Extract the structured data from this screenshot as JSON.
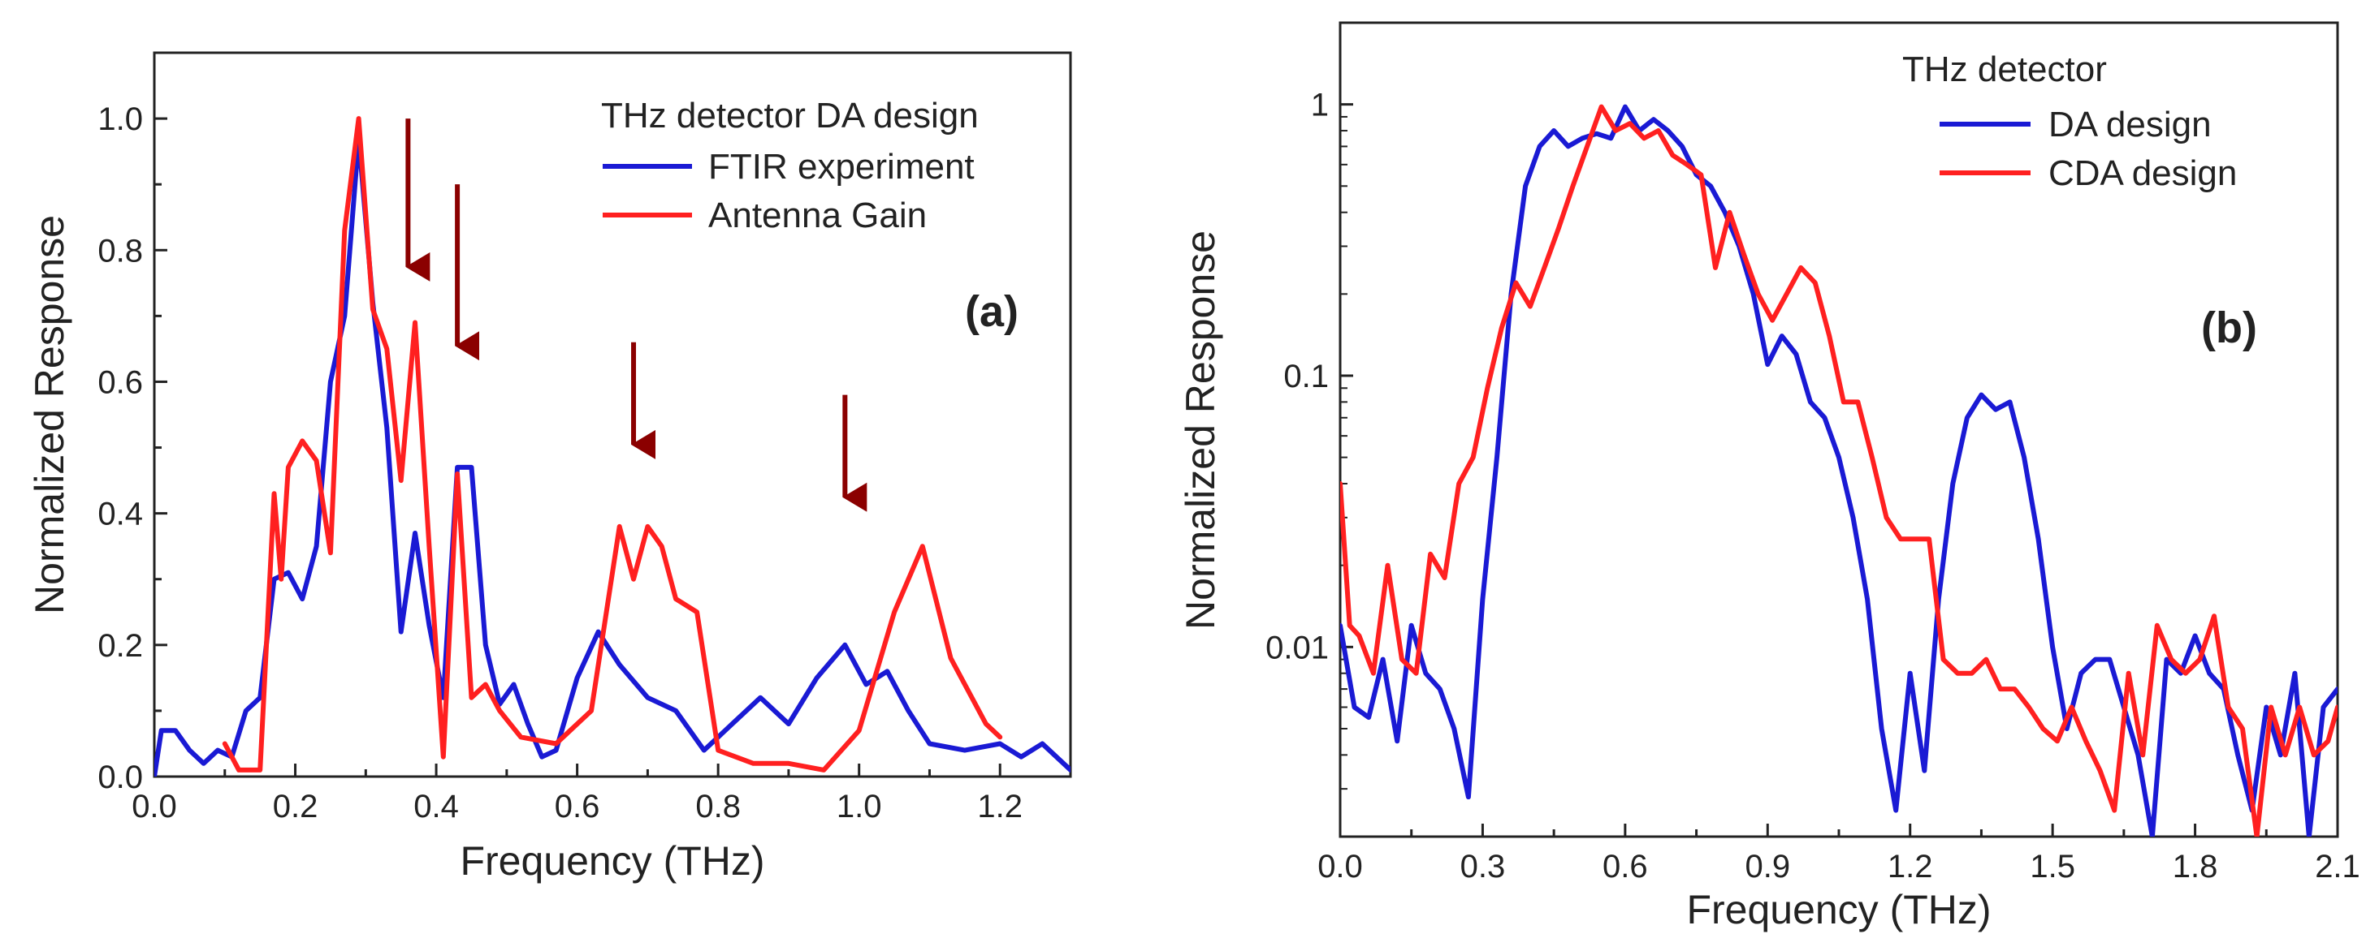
{
  "chart_data": [
    {
      "type": "line",
      "panel_label": "(a)",
      "xlabel": "Frequency (THz)",
      "ylabel": "Normalized Response",
      "xlim": [
        0.0,
        1.3
      ],
      "ylim": [
        0.0,
        1.1
      ],
      "yscale": "linear",
      "x_ticks": [
        0.0,
        0.2,
        0.4,
        0.6,
        0.8,
        1.0,
        1.2
      ],
      "x_tick_labels": [
        "0.0",
        "0.2",
        "0.4",
        "0.6",
        "0.8",
        "1.0",
        "1.2"
      ],
      "y_ticks": [
        0.0,
        0.2,
        0.4,
        0.6,
        0.8,
        1.0
      ],
      "y_tick_labels": [
        "0.0",
        "0.2",
        "0.4",
        "0.6",
        "0.8",
        "1.0"
      ],
      "legend_title": "THz detector DA design",
      "legend_position": "top-right",
      "series": [
        {
          "name": "FTIR experiment",
          "color": "#1a1ad4",
          "points": [
            [
              0.0,
              0.0
            ],
            [
              0.01,
              0.07
            ],
            [
              0.03,
              0.07
            ],
            [
              0.05,
              0.04
            ],
            [
              0.07,
              0.02
            ],
            [
              0.09,
              0.04
            ],
            [
              0.11,
              0.03
            ],
            [
              0.13,
              0.1
            ],
            [
              0.15,
              0.12
            ],
            [
              0.17,
              0.3
            ],
            [
              0.19,
              0.31
            ],
            [
              0.21,
              0.27
            ],
            [
              0.23,
              0.35
            ],
            [
              0.25,
              0.6
            ],
            [
              0.27,
              0.7
            ],
            [
              0.29,
              0.97
            ],
            [
              0.31,
              0.72
            ],
            [
              0.33,
              0.53
            ],
            [
              0.35,
              0.22
            ],
            [
              0.37,
              0.37
            ],
            [
              0.39,
              0.23
            ],
            [
              0.41,
              0.12
            ],
            [
              0.43,
              0.47
            ],
            [
              0.45,
              0.47
            ],
            [
              0.47,
              0.2
            ],
            [
              0.49,
              0.11
            ],
            [
              0.51,
              0.14
            ],
            [
              0.53,
              0.08
            ],
            [
              0.55,
              0.03
            ],
            [
              0.57,
              0.04
            ],
            [
              0.6,
              0.15
            ],
            [
              0.63,
              0.22
            ],
            [
              0.66,
              0.17
            ],
            [
              0.7,
              0.12
            ],
            [
              0.74,
              0.1
            ],
            [
              0.78,
              0.04
            ],
            [
              0.82,
              0.08
            ],
            [
              0.86,
              0.12
            ],
            [
              0.9,
              0.08
            ],
            [
              0.94,
              0.15
            ],
            [
              0.98,
              0.2
            ],
            [
              1.01,
              0.14
            ],
            [
              1.04,
              0.16
            ],
            [
              1.07,
              0.1
            ],
            [
              1.1,
              0.05
            ],
            [
              1.15,
              0.04
            ],
            [
              1.2,
              0.05
            ],
            [
              1.23,
              0.03
            ],
            [
              1.26,
              0.05
            ],
            [
              1.3,
              0.01
            ]
          ]
        },
        {
          "name": "Antenna Gain",
          "color": "#ff2020",
          "points": [
            [
              0.1,
              0.05
            ],
            [
              0.12,
              0.01
            ],
            [
              0.15,
              0.01
            ],
            [
              0.17,
              0.43
            ],
            [
              0.18,
              0.3
            ],
            [
              0.19,
              0.47
            ],
            [
              0.21,
              0.51
            ],
            [
              0.23,
              0.48
            ],
            [
              0.25,
              0.34
            ],
            [
              0.27,
              0.83
            ],
            [
              0.29,
              1.0
            ],
            [
              0.31,
              0.71
            ],
            [
              0.33,
              0.65
            ],
            [
              0.35,
              0.45
            ],
            [
              0.37,
              0.69
            ],
            [
              0.39,
              0.35
            ],
            [
              0.41,
              0.03
            ],
            [
              0.43,
              0.46
            ],
            [
              0.45,
              0.12
            ],
            [
              0.47,
              0.14
            ],
            [
              0.49,
              0.1
            ],
            [
              0.52,
              0.06
            ],
            [
              0.57,
              0.05
            ],
            [
              0.62,
              0.1
            ],
            [
              0.66,
              0.38
            ],
            [
              0.68,
              0.3
            ],
            [
              0.7,
              0.38
            ],
            [
              0.72,
              0.35
            ],
            [
              0.74,
              0.27
            ],
            [
              0.77,
              0.25
            ],
            [
              0.8,
              0.04
            ],
            [
              0.85,
              0.02
            ],
            [
              0.9,
              0.02
            ],
            [
              0.95,
              0.01
            ],
            [
              1.0,
              0.07
            ],
            [
              1.05,
              0.25
            ],
            [
              1.09,
              0.35
            ],
            [
              1.13,
              0.18
            ],
            [
              1.18,
              0.08
            ],
            [
              1.2,
              0.06
            ]
          ]
        }
      ],
      "annotations": [
        {
          "type": "arrow",
          "x": 0.36,
          "y_top": 1.0,
          "y_tip": 0.74,
          "color": "#8b0000"
        },
        {
          "type": "arrow",
          "x": 0.43,
          "y_top": 0.9,
          "y_tip": 0.62,
          "color": "#8b0000"
        },
        {
          "type": "arrow",
          "x": 0.68,
          "y_top": 0.66,
          "y_tip": 0.47,
          "color": "#8b0000"
        },
        {
          "type": "arrow",
          "x": 0.98,
          "y_top": 0.58,
          "y_tip": 0.39,
          "color": "#8b0000"
        }
      ]
    },
    {
      "type": "line",
      "panel_label": "(b)",
      "xlabel": "Frequency (THz)",
      "ylabel": "Normalized Response",
      "xlim": [
        0.0,
        2.1
      ],
      "ylim": [
        0.002,
        2
      ],
      "yscale": "log",
      "x_ticks": [
        0.0,
        0.3,
        0.6,
        0.9,
        1.2,
        1.5,
        1.8,
        2.1
      ],
      "x_tick_labels": [
        "0.0",
        "0.3",
        "0.6",
        "0.9",
        "1.2",
        "1.5",
        "1.8",
        "2.1"
      ],
      "y_ticks": [
        0.01,
        0.1,
        1
      ],
      "y_tick_labels": [
        "0.01",
        "0.1",
        "1"
      ],
      "legend_title": "THz detector",
      "legend_position": "top-right",
      "series": [
        {
          "name": "DA design",
          "color": "#1a1ad4",
          "points": [
            [
              0.0,
              0.012
            ],
            [
              0.03,
              0.006
            ],
            [
              0.06,
              0.0055
            ],
            [
              0.09,
              0.009
            ],
            [
              0.12,
              0.0045
            ],
            [
              0.15,
              0.012
            ],
            [
              0.18,
              0.008
            ],
            [
              0.21,
              0.007
            ],
            [
              0.24,
              0.005
            ],
            [
              0.27,
              0.0028
            ],
            [
              0.3,
              0.015
            ],
            [
              0.33,
              0.05
            ],
            [
              0.36,
              0.2
            ],
            [
              0.39,
              0.5
            ],
            [
              0.42,
              0.7
            ],
            [
              0.45,
              0.8
            ],
            [
              0.48,
              0.7
            ],
            [
              0.51,
              0.75
            ],
            [
              0.54,
              0.78
            ],
            [
              0.57,
              0.75
            ],
            [
              0.6,
              0.98
            ],
            [
              0.63,
              0.8
            ],
            [
              0.66,
              0.88
            ],
            [
              0.69,
              0.8
            ],
            [
              0.72,
              0.7
            ],
            [
              0.75,
              0.55
            ],
            [
              0.78,
              0.5
            ],
            [
              0.81,
              0.4
            ],
            [
              0.84,
              0.3
            ],
            [
              0.87,
              0.2
            ],
            [
              0.9,
              0.11
            ],
            [
              0.93,
              0.14
            ],
            [
              0.96,
              0.12
            ],
            [
              0.99,
              0.08
            ],
            [
              1.02,
              0.07
            ],
            [
              1.05,
              0.05
            ],
            [
              1.08,
              0.03
            ],
            [
              1.11,
              0.015
            ],
            [
              1.14,
              0.005
            ],
            [
              1.17,
              0.0025
            ],
            [
              1.2,
              0.008
            ],
            [
              1.23,
              0.0035
            ],
            [
              1.26,
              0.015
            ],
            [
              1.29,
              0.04
            ],
            [
              1.32,
              0.07
            ],
            [
              1.35,
              0.085
            ],
            [
              1.38,
              0.075
            ],
            [
              1.41,
              0.08
            ],
            [
              1.44,
              0.05
            ],
            [
              1.47,
              0.025
            ],
            [
              1.5,
              0.01
            ],
            [
              1.53,
              0.005
            ],
            [
              1.56,
              0.008
            ],
            [
              1.59,
              0.009
            ],
            [
              1.62,
              0.009
            ],
            [
              1.65,
              0.006
            ],
            [
              1.68,
              0.004
            ],
            [
              1.71,
              0.002
            ],
            [
              1.74,
              0.009
            ],
            [
              1.77,
              0.008
            ],
            [
              1.8,
              0.011
            ],
            [
              1.83,
              0.008
            ],
            [
              1.86,
              0.007
            ],
            [
              1.89,
              0.004
            ],
            [
              1.92,
              0.0025
            ],
            [
              1.95,
              0.006
            ],
            [
              1.98,
              0.004
            ],
            [
              2.01,
              0.008
            ],
            [
              2.04,
              0.002
            ],
            [
              2.07,
              0.006
            ],
            [
              2.1,
              0.007
            ]
          ]
        },
        {
          "name": "CDA design",
          "color": "#ff2020",
          "points": [
            [
              0.0,
              0.04
            ],
            [
              0.02,
              0.012
            ],
            [
              0.04,
              0.011
            ],
            [
              0.07,
              0.008
            ],
            [
              0.1,
              0.02
            ],
            [
              0.13,
              0.009
            ],
            [
              0.16,
              0.008
            ],
            [
              0.19,
              0.022
            ],
            [
              0.22,
              0.018
            ],
            [
              0.25,
              0.04
            ],
            [
              0.28,
              0.05
            ],
            [
              0.31,
              0.09
            ],
            [
              0.34,
              0.15
            ],
            [
              0.37,
              0.22
            ],
            [
              0.4,
              0.18
            ],
            [
              0.43,
              0.25
            ],
            [
              0.46,
              0.35
            ],
            [
              0.49,
              0.5
            ],
            [
              0.52,
              0.7
            ],
            [
              0.55,
              0.98
            ],
            [
              0.58,
              0.8
            ],
            [
              0.61,
              0.85
            ],
            [
              0.64,
              0.75
            ],
            [
              0.67,
              0.8
            ],
            [
              0.7,
              0.65
            ],
            [
              0.73,
              0.6
            ],
            [
              0.76,
              0.55
            ],
            [
              0.79,
              0.25
            ],
            [
              0.82,
              0.4
            ],
            [
              0.85,
              0.28
            ],
            [
              0.88,
              0.2
            ],
            [
              0.91,
              0.16
            ],
            [
              0.94,
              0.2
            ],
            [
              0.97,
              0.25
            ],
            [
              1.0,
              0.22
            ],
            [
              1.03,
              0.14
            ],
            [
              1.06,
              0.08
            ],
            [
              1.09,
              0.08
            ],
            [
              1.12,
              0.05
            ],
            [
              1.15,
              0.03
            ],
            [
              1.18,
              0.025
            ],
            [
              1.21,
              0.025
            ],
            [
              1.24,
              0.025
            ],
            [
              1.27,
              0.009
            ],
            [
              1.3,
              0.008
            ],
            [
              1.33,
              0.008
            ],
            [
              1.36,
              0.009
            ],
            [
              1.39,
              0.007
            ],
            [
              1.42,
              0.007
            ],
            [
              1.45,
              0.006
            ],
            [
              1.48,
              0.005
            ],
            [
              1.51,
              0.0045
            ],
            [
              1.54,
              0.006
            ],
            [
              1.57,
              0.0045
            ],
            [
              1.6,
              0.0035
            ],
            [
              1.63,
              0.0025
            ],
            [
              1.66,
              0.008
            ],
            [
              1.69,
              0.004
            ],
            [
              1.72,
              0.012
            ],
            [
              1.75,
              0.009
            ],
            [
              1.78,
              0.008
            ],
            [
              1.81,
              0.009
            ],
            [
              1.84,
              0.013
            ],
            [
              1.87,
              0.006
            ],
            [
              1.9,
              0.005
            ],
            [
              1.93,
              0.002
            ],
            [
              1.96,
              0.006
            ],
            [
              1.99,
              0.004
            ],
            [
              2.02,
              0.006
            ],
            [
              2.05,
              0.004
            ],
            [
              2.08,
              0.0045
            ],
            [
              2.1,
              0.006
            ]
          ]
        }
      ]
    }
  ]
}
